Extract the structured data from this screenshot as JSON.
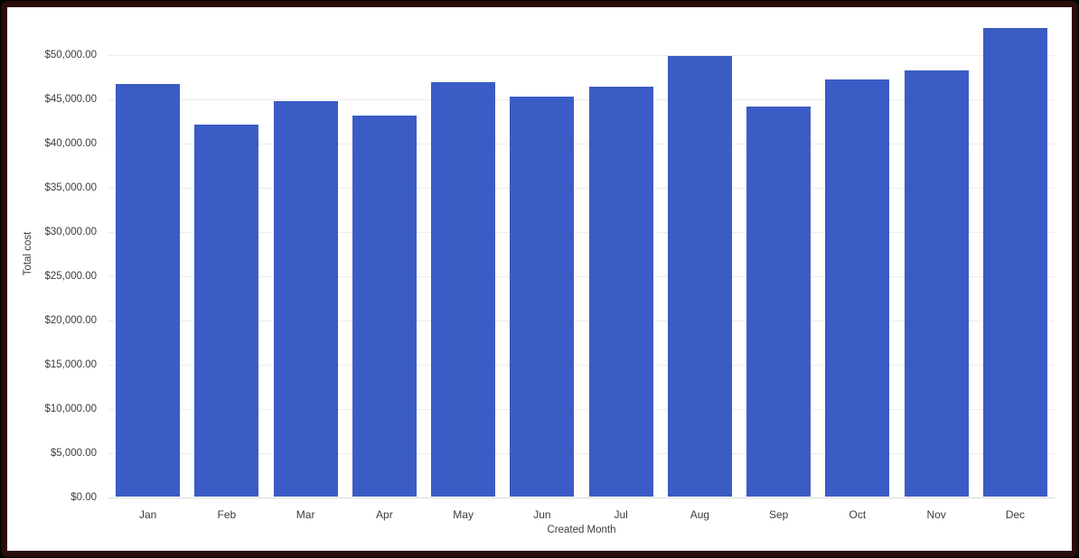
{
  "frame": {
    "border_color": "#2a0d08",
    "background": "#ffffff"
  },
  "chart_data": {
    "type": "bar",
    "title": "",
    "xlabel": "Created Month",
    "ylabel": "Total cost",
    "categories": [
      "Jan",
      "Feb",
      "Mar",
      "Apr",
      "May",
      "Jun",
      "Jul",
      "Aug",
      "Sep",
      "Oct",
      "Nov",
      "Dec"
    ],
    "values": [
      46600,
      42000,
      44700,
      43050,
      46850,
      45250,
      46300,
      49750,
      44050,
      47100,
      48150,
      53000
    ],
    "y_ticks": [
      "$0.00",
      "$5,000.00",
      "$10,000.00",
      "$15,000.00",
      "$20,000.00",
      "$25,000.00",
      "$30,000.00",
      "$35,000.00",
      "$40,000.00",
      "$45,000.00",
      "$50,000.00"
    ],
    "y_tick_values": [
      0,
      5000,
      10000,
      15000,
      20000,
      25000,
      30000,
      35000,
      40000,
      45000,
      50000
    ],
    "ylim": [
      0,
      55000
    ],
    "grid": true,
    "legend": "none",
    "bar_color": "#3b5cc4",
    "text_color": "#3c3c3c",
    "gridline_color": "#ececec",
    "zero_line_color": "#d8d8d8"
  }
}
